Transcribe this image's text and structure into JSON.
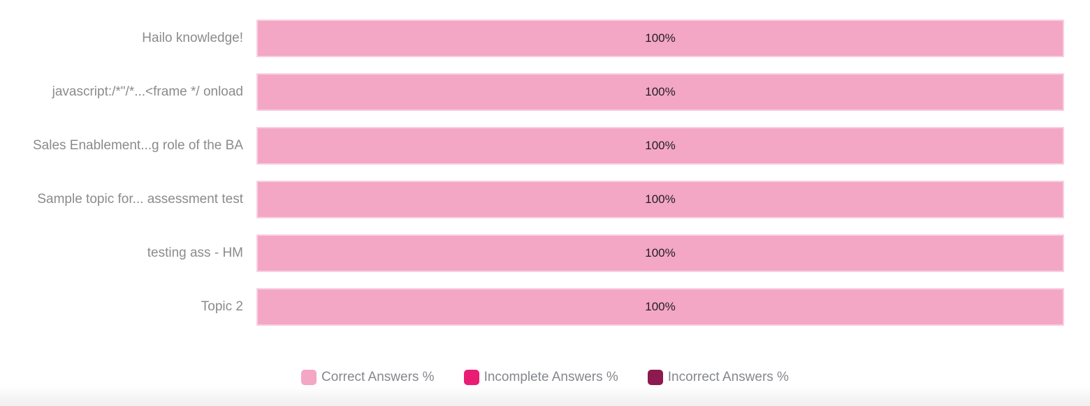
{
  "chart_data": {
    "type": "bar",
    "orientation": "horizontal",
    "stacked": true,
    "categories": [
      "Hailo knowledge!",
      "javascript:/*\"/*...<frame */ onload",
      "Sales Enablement...g role of the BA",
      "Sample topic for... assessment test",
      "testing ass - HM",
      "Topic 2"
    ],
    "series": [
      {
        "name": "Correct Answers %",
        "color": "#f4a6c5",
        "values": [
          100,
          100,
          100,
          100,
          100,
          100
        ]
      },
      {
        "name": "Incomplete Answers %",
        "color": "#ea1d75",
        "values": [
          0,
          0,
          0,
          0,
          0,
          0
        ]
      },
      {
        "name": "Incorrect Answers %",
        "color": "#8c1a4f",
        "values": [
          0,
          0,
          0,
          0,
          0,
          0
        ]
      }
    ],
    "value_labels": [
      "100%",
      "100%",
      "100%",
      "100%",
      "100%",
      "100%"
    ],
    "xlim": [
      0,
      100
    ],
    "grid": false,
    "legend_position": "bottom"
  },
  "legend": {
    "items": [
      {
        "label": "Correct Answers %",
        "color": "#f4a6c5"
      },
      {
        "label": "Incomplete Answers %",
        "color": "#ea1d75"
      },
      {
        "label": "Incorrect Answers %",
        "color": "#8c1a4f"
      }
    ]
  }
}
